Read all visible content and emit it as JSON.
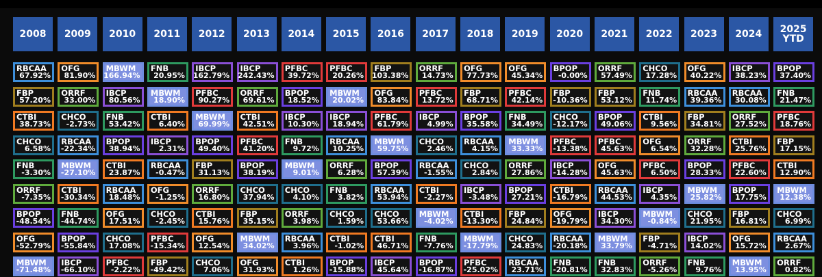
{
  "years": [
    "2008",
    "2009",
    "2010",
    "2011",
    "2012",
    "2013",
    "2014",
    "2015",
    "2016",
    "2017",
    "2018",
    "2019",
    "2020",
    "2021",
    "2022",
    "2023",
    "2024",
    "2025\nYTD"
  ],
  "colors": {
    "RBCAA": "#3d8fdb",
    "OFG": "#f08c2a",
    "MBWM": "#6f8de0",
    "FNB": "#2e9a60",
    "IBCP": "#8a4fd6",
    "PFBC": "#e03a3a",
    "FBP": "#a07e1e",
    "ORRF": "#5faa3c",
    "BPOP": "#6a3fe0",
    "CHCO": "#1f6e8c",
    "CTBI": "#f07a22"
  },
  "highlight_fill": "#7d8fe0",
  "chart_data": {
    "type": "table",
    "columns": [
      [
        [
          "RBCAA",
          "67.92%"
        ],
        [
          "FBP",
          "57.20%"
        ],
        [
          "CTBI",
          "38.73%"
        ],
        [
          "CHCO",
          "6.58%"
        ],
        [
          "FNB",
          "-3.30%"
        ],
        [
          "ORRF",
          "-7.35%"
        ],
        [
          "BPOP",
          "-48.54%"
        ],
        [
          "OFG",
          "-52.79%"
        ],
        [
          "MBWM",
          "-71.48%"
        ]
      ],
      [
        [
          "OFG",
          "81.90%"
        ],
        [
          "ORRF",
          "33.00%"
        ],
        [
          "CHCO",
          "-2.73%"
        ],
        [
          "RBCAA",
          "-22.34%"
        ],
        [
          "MBWM",
          "-27.10%"
        ],
        [
          "CTBI",
          "-30.34%"
        ],
        [
          "FNB",
          "-44.74%"
        ],
        [
          "BPOP",
          "-55.84%"
        ],
        [
          "IBCP",
          "-66.10%"
        ]
      ],
      [
        [
          "MBWM",
          "166.94%"
        ],
        [
          "IBCP",
          "80.56%"
        ],
        [
          "FNB",
          "53.42%"
        ],
        [
          "BPOP",
          "38.94%"
        ],
        [
          "CTBI",
          "23.87%"
        ],
        [
          "RBCAA",
          "18.48%"
        ],
        [
          "OFG",
          "17.51%"
        ],
        [
          "CHCO",
          "17.08%"
        ],
        [
          "PFBC",
          "-2.22%"
        ]
      ],
      [
        [
          "FNB",
          "20.95%"
        ],
        [
          "MBWM",
          "18.90%"
        ],
        [
          "CTBI",
          "6.40%"
        ],
        [
          "IBCP",
          "2.31%"
        ],
        [
          "RBCAA",
          "-0.47%"
        ],
        [
          "OFG",
          "-1.25%"
        ],
        [
          "CHCO",
          "-2.45%"
        ],
        [
          "PFBC",
          "-15.34%"
        ],
        [
          "FBP",
          "-49.42%"
        ]
      ],
      [
        [
          "IBCP",
          "162.79%"
        ],
        [
          "PFBC",
          "90.27%"
        ],
        [
          "MBWM",
          "69.99%"
        ],
        [
          "BPOP",
          "49.40%"
        ],
        [
          "FBP",
          "31.13%"
        ],
        [
          "ORRF",
          "16.80%"
        ],
        [
          "CTBI",
          "15.76%"
        ],
        [
          "OFG",
          "12.54%"
        ],
        [
          "CHCO",
          "7.06%"
        ]
      ],
      [
        [
          "IBCP",
          "242.43%"
        ],
        [
          "ORRF",
          "69.61%"
        ],
        [
          "CTBI",
          "42.51%"
        ],
        [
          "PFBC",
          "41.20%"
        ],
        [
          "BPOP",
          "38.19%"
        ],
        [
          "CHCO",
          "37.94%"
        ],
        [
          "FBP",
          "35.15%"
        ],
        [
          "MBWM",
          "34.02%"
        ],
        [
          "OFG",
          "31.93%"
        ]
      ],
      [
        [
          "PFBC",
          "39.72%"
        ],
        [
          "BPOP",
          "18.52%"
        ],
        [
          "IBCP",
          "10.30%"
        ],
        [
          "FNB",
          "9.72%"
        ],
        [
          "MBWM",
          "9.01%"
        ],
        [
          "CHCO",
          "4.10%"
        ],
        [
          "ORRF",
          "3.98%"
        ],
        [
          "RBCAA",
          "3.96%"
        ],
        [
          "CTBI",
          "1.26%"
        ]
      ],
      [
        [
          "PFBC",
          "20.26%"
        ],
        [
          "MBWM",
          "20.02%"
        ],
        [
          "IBCP",
          "18.94%"
        ],
        [
          "RBCAA",
          "10.25%"
        ],
        [
          "ORRF",
          "6.28%"
        ],
        [
          "FNB",
          "3.82%"
        ],
        [
          "CHCO",
          "1.59%"
        ],
        [
          "CTBI",
          "-1.02%"
        ],
        [
          "BPOP",
          "-15.88%"
        ]
      ],
      [
        [
          "FBP",
          "103.38%"
        ],
        [
          "OFG",
          "83.84%"
        ],
        [
          "PFBC",
          "61.79%"
        ],
        [
          "MBWM",
          "59.75%"
        ],
        [
          "BPOP",
          "57.39%"
        ],
        [
          "RBCAA",
          "53.94%"
        ],
        [
          "CHCO",
          "53.66%"
        ],
        [
          "CTBI",
          "46.71%"
        ],
        [
          "IBCP",
          "45.64%"
        ]
      ],
      [
        [
          "ORRF",
          "14.73%"
        ],
        [
          "PFBC",
          "13.72%"
        ],
        [
          "IBCP",
          "4.99%"
        ],
        [
          "CHCO",
          "2.46%"
        ],
        [
          "RBCAA",
          "-1.55%"
        ],
        [
          "CTBI",
          "-2.27%"
        ],
        [
          "MBWM",
          "-4.02%"
        ],
        [
          "FNB",
          "-7.76%"
        ],
        [
          "BPOP",
          "-16.87%"
        ]
      ],
      [
        [
          "OFG",
          "77.73%"
        ],
        [
          "FBP",
          "68.71%"
        ],
        [
          "BPOP",
          "35.58%"
        ],
        [
          "RBCAA",
          "4.15%"
        ],
        [
          "CHCO",
          "2.84%"
        ],
        [
          "IBCP",
          "-3.48%"
        ],
        [
          "CTBI",
          "-13.30%"
        ],
        [
          "MBWM",
          "-17.79%"
        ],
        [
          "PFBC",
          "-25.02%"
        ]
      ],
      [
        [
          "OFG",
          "45.34%"
        ],
        [
          "PFBC",
          "42.14%"
        ],
        [
          "FNB",
          "34.49%"
        ],
        [
          "MBWM",
          "33.33%"
        ],
        [
          "ORRF",
          "27.86%"
        ],
        [
          "BPOP",
          "27.21%"
        ],
        [
          "FBP",
          "24.84%"
        ],
        [
          "CHCO",
          "24.83%"
        ],
        [
          "RBCAA",
          "23.71%"
        ]
      ],
      [
        [
          "BPOP",
          "-0.00%"
        ],
        [
          "FBP",
          "-10.36%"
        ],
        [
          "CHCO",
          "-12.17%"
        ],
        [
          "PFBC",
          "-13.38%"
        ],
        [
          "IBCP",
          "-14.28%"
        ],
        [
          "CTBI",
          "-16.79%"
        ],
        [
          "OFG",
          "-19.79%"
        ],
        [
          "RBCAA",
          "-20.18%"
        ],
        [
          "FNB",
          "-20.81%"
        ]
      ],
      [
        [
          "ORRF",
          "57.49%"
        ],
        [
          "FBP",
          "53.12%"
        ],
        [
          "BPOP",
          "49.06%"
        ],
        [
          "PFBC",
          "45.63%"
        ],
        [
          "OFG",
          "45.63%"
        ],
        [
          "RBCAA",
          "44.53%"
        ],
        [
          "IBCP",
          "34.30%"
        ],
        [
          "MBWM",
          "33.79%"
        ],
        [
          "FNB",
          "32.83%"
        ]
      ],
      [
        [
          "CHCO",
          "17.28%"
        ],
        [
          "FNB",
          "11.74%"
        ],
        [
          "CTBI",
          "9.56%"
        ],
        [
          "OFG",
          "6.54%"
        ],
        [
          "PFBC",
          "6.50%"
        ],
        [
          "IBCP",
          "4.35%"
        ],
        [
          "MBWM",
          "-0.84%"
        ],
        [
          "FBP",
          "-4.71%"
        ],
        [
          "ORRF",
          "-5.26%"
        ]
      ],
      [
        [
          "OFG",
          "40.22%"
        ],
        [
          "RBCAA",
          "39.36%"
        ],
        [
          "FBP",
          "34.81%"
        ],
        [
          "ORRF",
          "32.28%"
        ],
        [
          "BPOP",
          "28.33%"
        ],
        [
          "MBWM",
          "25.82%"
        ],
        [
          "CHCO",
          "21.95%"
        ],
        [
          "IBCP",
          "14.02%"
        ],
        [
          "FNB",
          "9.76%"
        ]
      ],
      [
        [
          "IBCP",
          "38.23%"
        ],
        [
          "RBCAA",
          "30.08%"
        ],
        [
          "ORRF",
          "27.52%"
        ],
        [
          "CTBI",
          "25.76%"
        ],
        [
          "PFBC",
          "22.60%"
        ],
        [
          "BPOP",
          "17.75%"
        ],
        [
          "FBP",
          "16.81%"
        ],
        [
          "OFG",
          "15.72%"
        ],
        [
          "MBWM",
          "13.95%"
        ]
      ],
      [
        [
          "BPOP",
          "37.40%"
        ],
        [
          "FNB",
          "21.47%"
        ],
        [
          "PFBC",
          "18.76%"
        ],
        [
          "FBP",
          "17.15%"
        ],
        [
          "CTBI",
          "12.90%"
        ],
        [
          "MBWM",
          "12.38%"
        ],
        [
          "CHCO",
          "6.99%"
        ],
        [
          "RBCAA",
          "2.67%"
        ],
        [
          "ORRF",
          "0.82%"
        ]
      ]
    ]
  }
}
